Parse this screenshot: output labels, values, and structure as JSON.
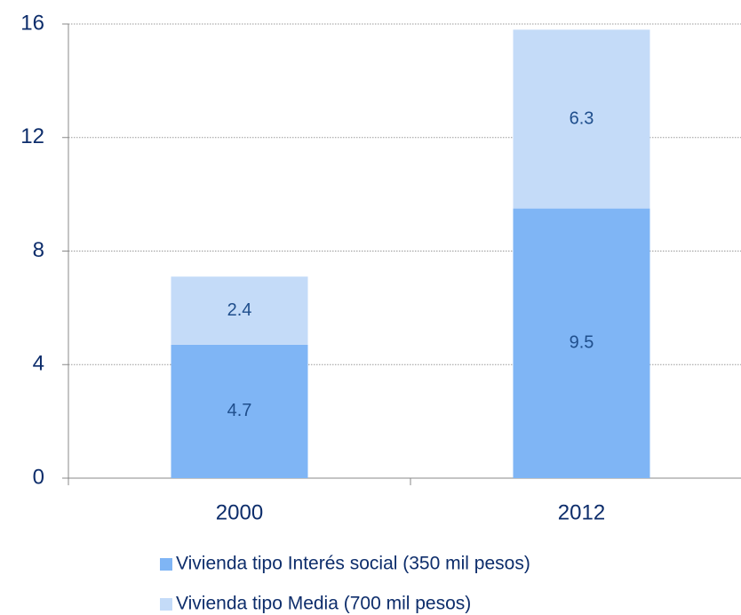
{
  "chart_data": {
    "type": "stacked_bar",
    "categories": [
      "2000",
      "2012"
    ],
    "series": [
      {
        "name": "Vivienda tipo Interés social (350 mil pesos)",
        "color": "#7fb5f5",
        "values": [
          4.7,
          9.5
        ]
      },
      {
        "name": "Vivienda tipo Media (700 mil pesos)",
        "color": "#c4dbf8",
        "values": [
          2.4,
          6.3
        ]
      }
    ],
    "ylim": [
      0,
      16
    ],
    "yticks": [
      0,
      4,
      8,
      12,
      16
    ],
    "grid": true,
    "legend": "bottom"
  }
}
